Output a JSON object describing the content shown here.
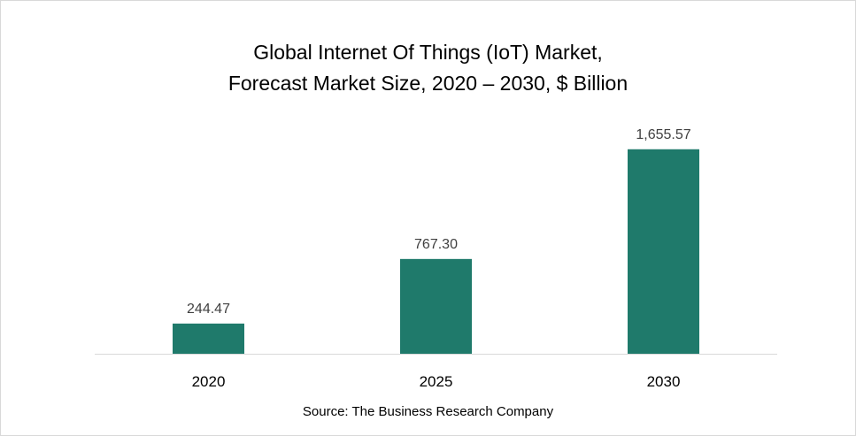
{
  "chart_data": {
    "type": "bar",
    "title_lines": [
      "Global Internet Of Things (IoT) Market,",
      "Forecast Market Size, 2020 – 2030, $ Billion"
    ],
    "categories": [
      "2020",
      "2025",
      "2030"
    ],
    "values": [
      244.47,
      767.3,
      1655.57
    ],
    "value_labels": [
      "244.47",
      "767.30",
      "1,655.57"
    ],
    "ylim": [
      0,
      1790
    ],
    "grid": false,
    "legend": "none",
    "bar_color": "#1f7a6b",
    "source": "Source: The Business Research Company"
  }
}
